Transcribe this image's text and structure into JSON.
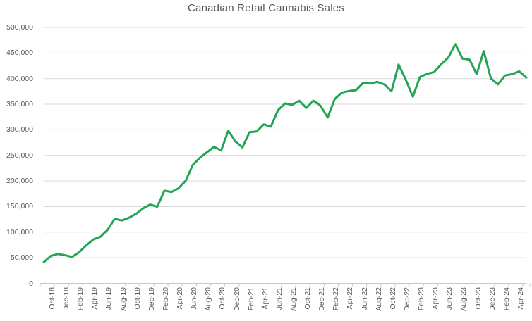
{
  "chart_data": {
    "type": "line",
    "title": "Canadian Retail Cannabis Sales",
    "categories": [
      "Oct-18",
      "Nov-18",
      "Dec-18",
      "Jan-19",
      "Feb-19",
      "Mar-19",
      "Apr-19",
      "May-19",
      "Jun-19",
      "Jul-19",
      "Aug-19",
      "Sep-19",
      "Oct-19",
      "Nov-19",
      "Dec-19",
      "Jan-20",
      "Feb-20",
      "Mar-20",
      "Apr-20",
      "May-20",
      "Jun-20",
      "Jul-20",
      "Aug-20",
      "Sep-20",
      "Oct-20",
      "Nov-20",
      "Dec-20",
      "Jan-21",
      "Feb-21",
      "Mar-21",
      "Apr-21",
      "May-21",
      "Jun-21",
      "Jul-21",
      "Aug-21",
      "Sep-21",
      "Oct-21",
      "Nov-21",
      "Dec-21",
      "Jan-22",
      "Feb-22",
      "Mar-22",
      "Apr-22",
      "May-22",
      "Jun-22",
      "Jul-22",
      "Aug-22",
      "Sep-22",
      "Oct-22",
      "Nov-22",
      "Dec-22",
      "Jan-23",
      "Feb-23",
      "Mar-23",
      "Apr-23",
      "May-23",
      "Jun-23",
      "Jul-23",
      "Aug-23",
      "Sep-23",
      "Oct-23",
      "Nov-23",
      "Dec-23",
      "Jan-24",
      "Feb-24",
      "Mar-24",
      "Apr-24",
      "May-24",
      "Jun-24"
    ],
    "values": [
      41300,
      53700,
      57300,
      54900,
      51700,
      60900,
      74600,
      85800,
      91200,
      104600,
      126200,
      122900,
      128200,
      135700,
      146500,
      154100,
      149600,
      181000,
      178500,
      185900,
      200600,
      231300,
      245300,
      256100,
      267000,
      259500,
      298300,
      277300,
      265600,
      295300,
      296800,
      310600,
      306200,
      338200,
      351400,
      348800,
      356700,
      342800,
      356900,
      346600,
      324200,
      360200,
      372600,
      375800,
      377400,
      391600,
      390400,
      393600,
      388600,
      375600,
      427500,
      398200,
      364800,
      403000,
      409200,
      412800,
      428000,
      441200,
      467300,
      439000,
      437200,
      408600,
      453800,
      400400,
      388800,
      406200,
      408800,
      414200,
      402000
    ],
    "xlabel": "",
    "ylabel": "",
    "ylim": [
      0,
      500000
    ],
    "ytick_step": 50000,
    "ytick_labels": [
      "0",
      "50,000",
      "100,000",
      "150,000",
      "200,000",
      "250,000",
      "300,000",
      "350,000",
      "400,000",
      "450,000",
      "500,000"
    ],
    "x_tick_interval": 2,
    "grid": true,
    "legend": "none",
    "line_color": "#23A455",
    "grid_color": "#D9D9D9",
    "axis_color": "#C8C8C8",
    "label_color": "#595959",
    "title_color": "#595959",
    "background": "#FFFFFF"
  }
}
